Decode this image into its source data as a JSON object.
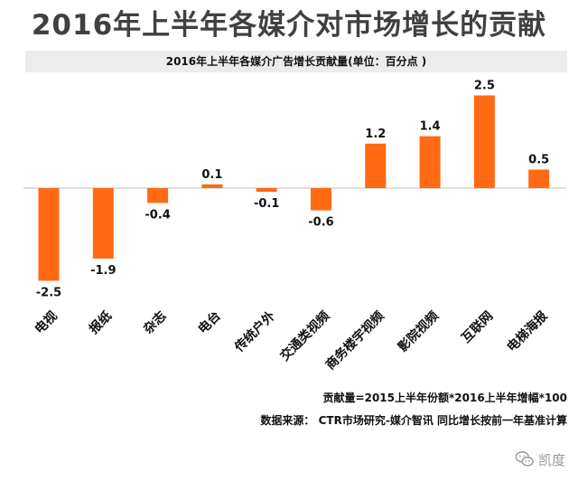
{
  "title": "2016年上半年各媒介对市场增长的贡献",
  "chart_data": {
    "type": "bar",
    "title": "2016年上半年各媒介广告增长贡献量(单位：百分点 )",
    "categories": [
      "电视",
      "报纸",
      "杂志",
      "电台",
      "传统户外",
      "交通类视频",
      "商务楼宇视频",
      "影院视频",
      "互联网",
      "电梯海报"
    ],
    "values": [
      -2.5,
      -1.9,
      -0.4,
      0.1,
      -0.1,
      -0.6,
      1.2,
      1.4,
      2.5,
      0.5
    ],
    "value_labels": [
      "-2.5",
      "-1.9",
      "-0.4",
      "0.1",
      "-0.1",
      "-0.6",
      "1.2",
      "1.4",
      "2.5",
      "0.5"
    ],
    "xlabel": "",
    "ylabel": "",
    "ylim": [
      -2.5,
      2.5
    ],
    "grid": false,
    "bar_color": "#ff6a13"
  },
  "notes": {
    "formula": "贡献量=2015上半年份额*2016上半年增幅*100",
    "source": "数据来源： CTR市场研究-媒介智讯   同比增长按前一年基准计算"
  },
  "watermark": {
    "icon": "wechat-icon",
    "text": "凯度"
  }
}
